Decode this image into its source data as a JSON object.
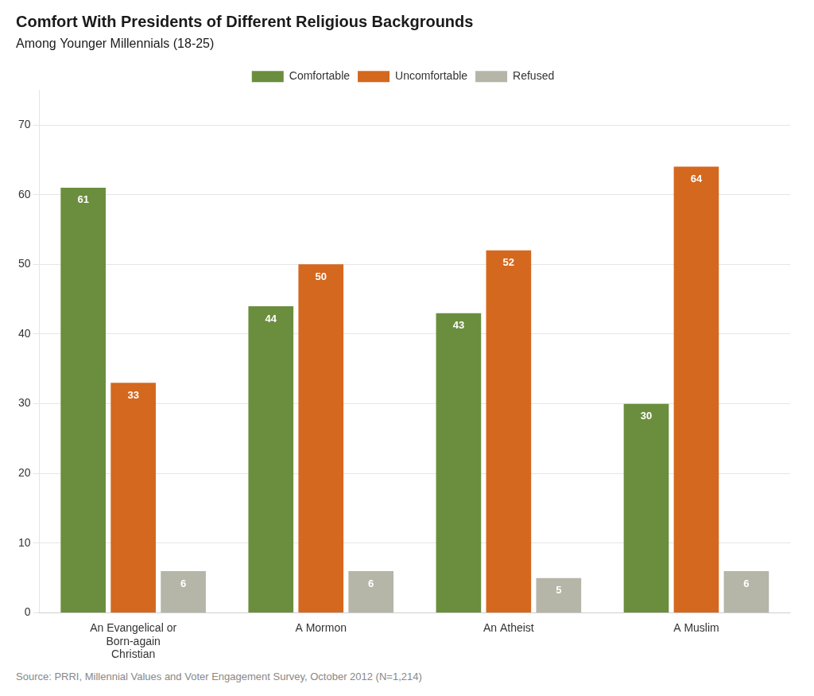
{
  "chart_data": {
    "type": "bar",
    "title": "Comfort With Presidents of Different Religious Backgrounds",
    "subtitle": "Among Younger Millennials (18-25)",
    "source": "Source: PRRI, Millennial Values and Voter Engagement Survey, October 2012 (N=1,214)",
    "categories": [
      "An Evangelical or\nBorn-again\nChristian",
      "A Mormon",
      "An Atheist",
      "A Muslim"
    ],
    "series": [
      {
        "name": "Comfortable",
        "values": [
          61,
          44,
          43,
          30
        ],
        "color": "#6b8e3e"
      },
      {
        "name": "Uncomfortable",
        "values": [
          33,
          50,
          52,
          64
        ],
        "color": "#d4681e"
      },
      {
        "name": "Refused",
        "values": [
          6,
          6,
          5,
          6
        ],
        "color": "#b5b5a8"
      }
    ],
    "ylim": [
      0,
      75
    ],
    "yticks": [
      0,
      10,
      20,
      30,
      40,
      50,
      60,
      70
    ],
    "grid": true,
    "legend": "top",
    "data_labels": true
  }
}
